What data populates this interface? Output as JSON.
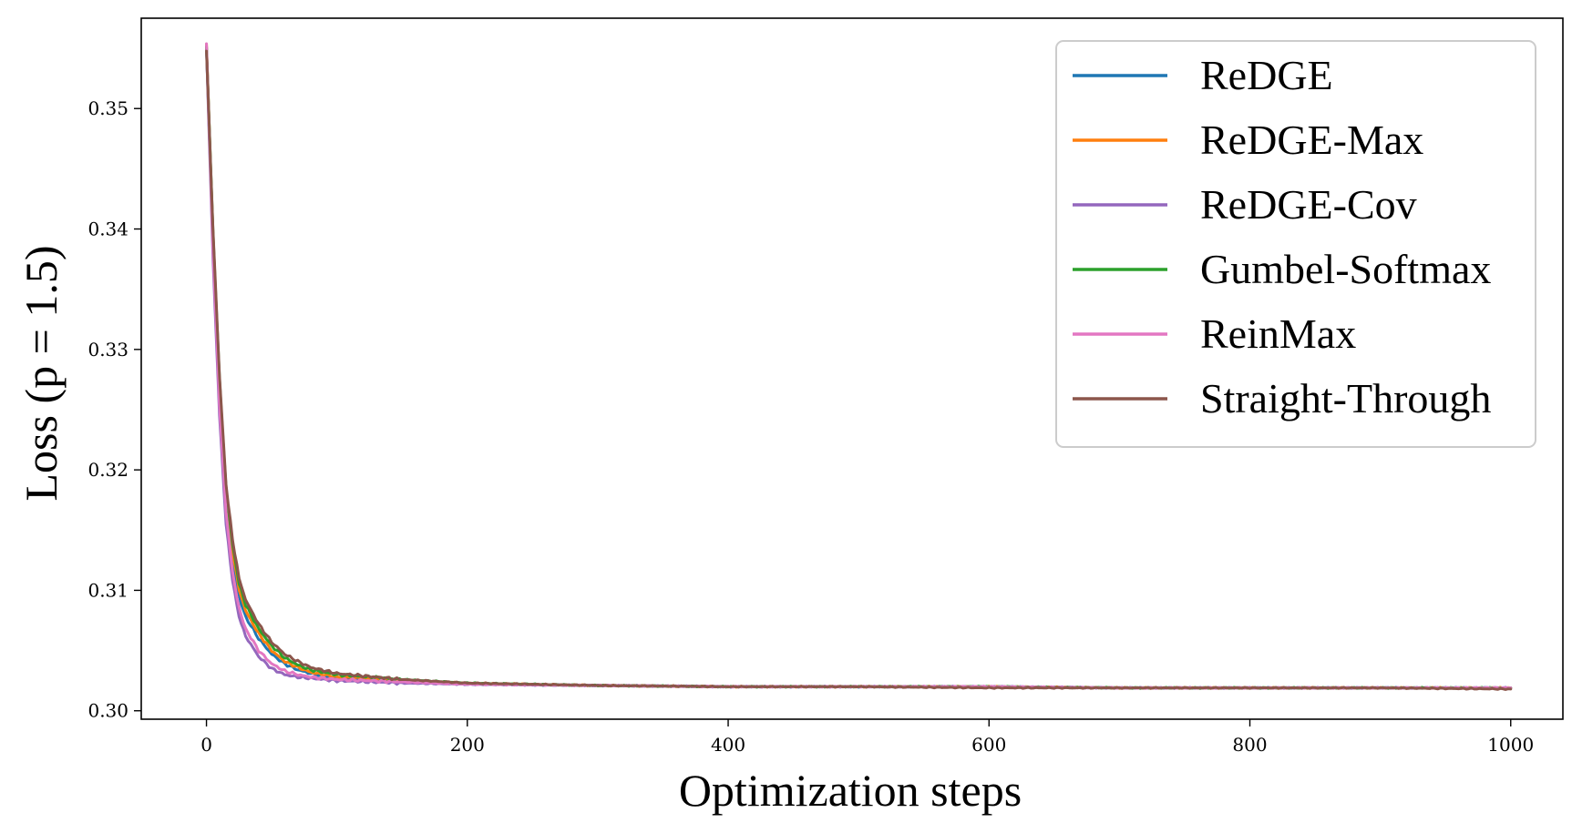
{
  "chart_data": {
    "type": "line",
    "title": "",
    "xlabel": "Optimization steps",
    "ylabel": "Loss (p = 1.5)",
    "xlim": [
      -50,
      1040
    ],
    "ylim": [
      0.2993,
      0.3575
    ],
    "xticks": [
      0,
      200,
      400,
      600,
      800,
      1000
    ],
    "xtick_labels": [
      "0",
      "200",
      "400",
      "600",
      "800",
      "1000"
    ],
    "yticks": [
      0.3,
      0.31,
      0.32,
      0.33,
      0.34,
      0.35
    ],
    "ytick_labels": [
      "0.30",
      "0.31",
      "0.32",
      "0.33",
      "0.34",
      "0.35"
    ],
    "grid": false,
    "legend_position": "top-right",
    "series": [
      {
        "name": "ReDGE",
        "color": "#1f77b4",
        "x": [
          0,
          5,
          10,
          15,
          20,
          25,
          30,
          40,
          50,
          60,
          70,
          80,
          100,
          150,
          200,
          300,
          400,
          500,
          600,
          700,
          800,
          900,
          1000
        ],
        "y": [
          0.355,
          0.339,
          0.326,
          0.317,
          0.3125,
          0.3095,
          0.3078,
          0.306,
          0.3047,
          0.3039,
          0.3034,
          0.3031,
          0.3027,
          0.3024,
          0.3022,
          0.3021,
          0.302,
          0.302,
          0.302,
          0.3019,
          0.3019,
          0.3019,
          0.3019
        ]
      },
      {
        "name": "ReDGE-Max",
        "color": "#ff7f0e",
        "x": [
          0,
          5,
          10,
          15,
          20,
          25,
          30,
          40,
          50,
          60,
          70,
          80,
          100,
          150,
          200,
          300,
          400,
          500,
          600,
          700,
          800,
          900,
          1000
        ],
        "y": [
          0.3553,
          0.3395,
          0.3268,
          0.3178,
          0.3132,
          0.3101,
          0.3083,
          0.3064,
          0.305,
          0.3041,
          0.3036,
          0.3032,
          0.3028,
          0.3025,
          0.3023,
          0.3021,
          0.302,
          0.302,
          0.302,
          0.3019,
          0.3019,
          0.3019,
          0.3019
        ]
      },
      {
        "name": "ReDGE-Cov",
        "color": "#9467bd",
        "x": [
          0,
          5,
          10,
          15,
          20,
          25,
          30,
          40,
          50,
          60,
          70,
          80,
          100,
          150,
          200,
          300,
          400,
          500,
          600,
          700,
          800,
          900,
          1000
        ],
        "y": [
          0.3551,
          0.3375,
          0.3245,
          0.3155,
          0.3108,
          0.3078,
          0.3062,
          0.3045,
          0.3035,
          0.303,
          0.3028,
          0.3027,
          0.3025,
          0.3023,
          0.3022,
          0.3021,
          0.302,
          0.302,
          0.302,
          0.3019,
          0.3019,
          0.3019,
          0.3019
        ]
      },
      {
        "name": "Gumbel-Softmax",
        "color": "#2ca02c",
        "x": [
          0,
          5,
          10,
          15,
          20,
          25,
          30,
          40,
          50,
          60,
          70,
          80,
          100,
          150,
          200,
          300,
          400,
          500,
          600,
          700,
          800,
          900,
          1000
        ],
        "y": [
          0.3552,
          0.3398,
          0.3275,
          0.3185,
          0.3138,
          0.3106,
          0.3088,
          0.3068,
          0.3054,
          0.3044,
          0.3038,
          0.3034,
          0.303,
          0.3026,
          0.3023,
          0.3021,
          0.302,
          0.302,
          0.302,
          0.3019,
          0.3019,
          0.3019,
          0.3019
        ]
      },
      {
        "name": "ReinMax",
        "color": "#e377c2",
        "x": [
          0,
          5,
          10,
          15,
          20,
          25,
          30,
          40,
          50,
          60,
          70,
          80,
          100,
          150,
          200,
          300,
          400,
          500,
          600,
          700,
          800,
          900,
          1000
        ],
        "y": [
          0.3554,
          0.3385,
          0.3255,
          0.3165,
          0.3115,
          0.3085,
          0.3068,
          0.305,
          0.3039,
          0.3033,
          0.303,
          0.3028,
          0.3026,
          0.3024,
          0.3022,
          0.3021,
          0.302,
          0.302,
          0.302,
          0.3019,
          0.3019,
          0.3019,
          0.3019
        ]
      },
      {
        "name": "Straight-Through",
        "color": "#8c564b",
        "x": [
          0,
          5,
          10,
          15,
          20,
          25,
          30,
          40,
          50,
          60,
          70,
          80,
          100,
          150,
          200,
          300,
          400,
          500,
          600,
          700,
          800,
          900,
          1000
        ],
        "y": [
          0.3548,
          0.34,
          0.3278,
          0.3188,
          0.3142,
          0.311,
          0.3092,
          0.3072,
          0.3057,
          0.3047,
          0.3041,
          0.3036,
          0.3031,
          0.3026,
          0.3023,
          0.3021,
          0.302,
          0.302,
          0.3019,
          0.3019,
          0.3019,
          0.3019,
          0.3018
        ]
      }
    ]
  }
}
